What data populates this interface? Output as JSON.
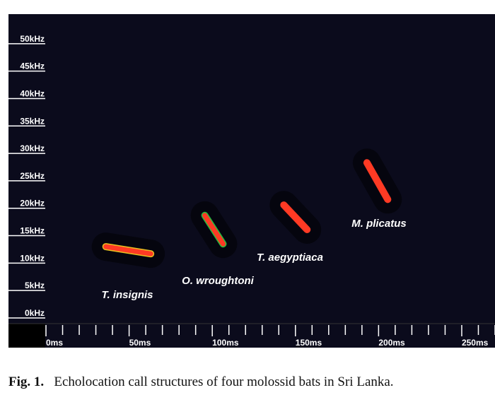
{
  "chart_data": {
    "type": "spectrogram",
    "caption_label": "Fig. 1.",
    "caption": "Echolocation call structures of four molossid bats in Sri Lanka.",
    "xlim": [
      0,
      270
    ],
    "ylim": [
      0,
      55
    ],
    "xticks": [
      {
        "value": 0,
        "label": "0ms"
      },
      {
        "value": 50,
        "label": "50ms"
      },
      {
        "value": 100,
        "label": "100ms"
      },
      {
        "value": 150,
        "label": "150ms"
      },
      {
        "value": 200,
        "label": "200ms"
      },
      {
        "value": 250,
        "label": "250ms"
      }
    ],
    "xminorticks": [
      10,
      20,
      30,
      40,
      60,
      70,
      80,
      90,
      110,
      120,
      130,
      140,
      160,
      170,
      180,
      190,
      210,
      220,
      230,
      240,
      260,
      270
    ],
    "yticks": [
      {
        "value": 0,
        "label": "0kHz"
      },
      {
        "value": 5,
        "label": "5kHz"
      },
      {
        "value": 10,
        "label": "10kHz"
      },
      {
        "value": 15,
        "label": "15kHz"
      },
      {
        "value": 20,
        "label": "20kHz"
      },
      {
        "value": 25,
        "label": "25kHz"
      },
      {
        "value": 30,
        "label": "30kHz"
      },
      {
        "value": 35,
        "label": "35kHz"
      },
      {
        "value": 40,
        "label": "40kHz"
      },
      {
        "value": 45,
        "label": "45kHz"
      },
      {
        "value": 50,
        "label": "50kHz"
      }
    ],
    "series": [
      {
        "name": "T. insignis",
        "color": "#ff3a24",
        "edge_color": "#e8c020",
        "x": [
          36,
          63
        ],
        "values": [
          13,
          11.7
        ]
      },
      {
        "name": "O. wroughtoni",
        "color": "#ff3a24",
        "edge_color": "#22c040",
        "x": [
          95.5,
          106.5
        ],
        "values": [
          18.7,
          13.5
        ]
      },
      {
        "name": "T. aegyptiaca",
        "color": "#ff3a24",
        "edge_color": "#ff3a24",
        "x": [
          143,
          157
        ],
        "values": [
          20.6,
          16.1
        ]
      },
      {
        "name": "M. plicatus",
        "color": "#ff3a24",
        "edge_color": "#ff3a24",
        "x": [
          193,
          205.5
        ],
        "values": [
          28.3,
          21.6
        ]
      }
    ]
  }
}
